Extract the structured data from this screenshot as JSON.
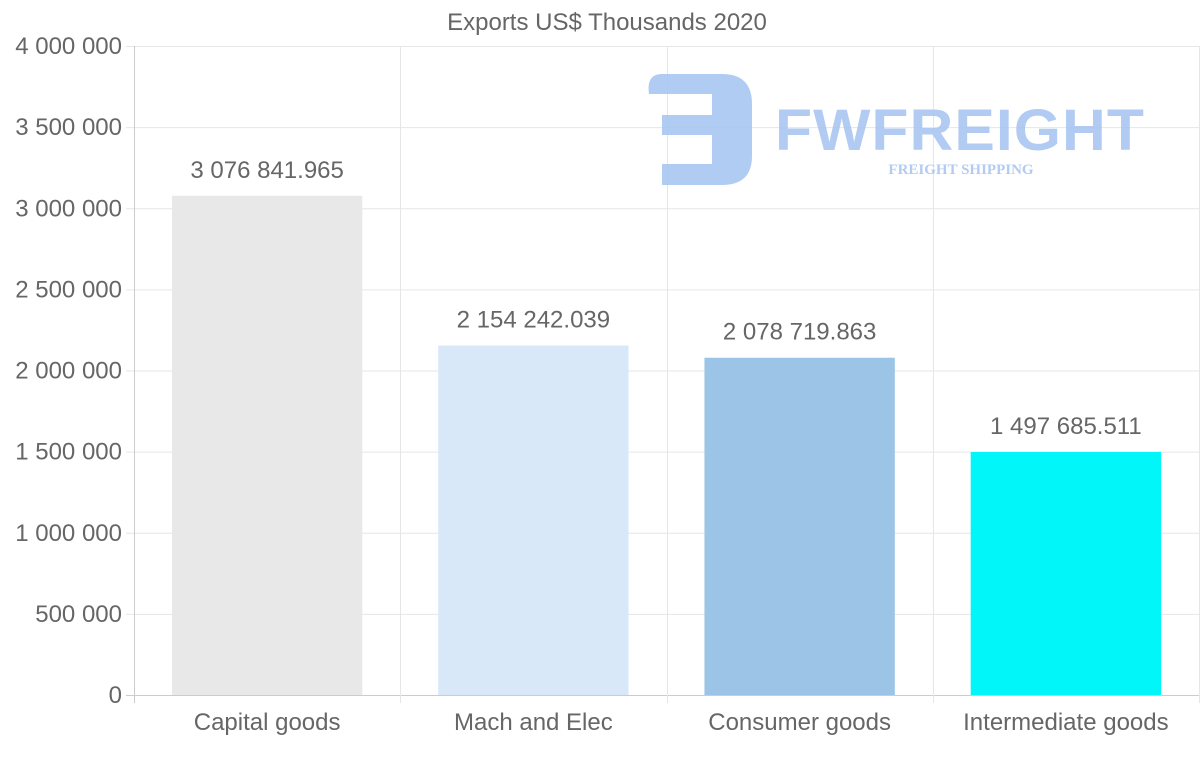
{
  "chart_data": {
    "type": "bar",
    "title": "Exports US$ Thousands 2020",
    "categories": [
      "Capital goods",
      "Mach and Elec",
      "Consumer goods",
      "Intermediate goods"
    ],
    "values": [
      3076841.965,
      2154242.039,
      2078719.863,
      1497685.511
    ],
    "value_labels": [
      "3 076 841.965",
      "2 154 242.039",
      "2 078 719.863",
      "1 497 685.511"
    ],
    "colors": [
      "#e8e8e8",
      "#d9e8f9",
      "#9bc4e6",
      "#00f6f8"
    ],
    "ylim": [
      0,
      4000000
    ],
    "yticks": [
      0,
      500000,
      1000000,
      1500000,
      2000000,
      2500000,
      3000000,
      3500000,
      4000000
    ],
    "ytick_labels": [
      "0",
      "500 000",
      "1 000 000",
      "1 500 000",
      "2 000 000",
      "2 500 000",
      "3 000 000",
      "3 500 000",
      "4 000 000"
    ],
    "xlabel": "",
    "ylabel": "",
    "grid": true
  },
  "watermark": {
    "brand": "FWFREIGHT",
    "tagline": "FREIGHT SHIPPING",
    "color": "#a9c6f2"
  }
}
